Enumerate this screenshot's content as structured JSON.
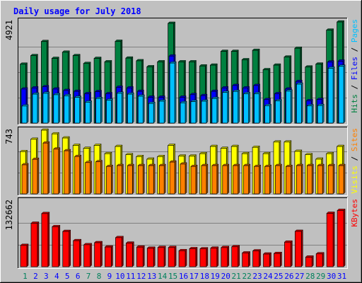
{
  "title": "Daily usage for July 2018",
  "colors": {
    "background": "#c0c0c0",
    "plot_background": "#c0c0c0",
    "title": "#0000ff",
    "hits": "#008040",
    "files": "#0000ff",
    "pages": "#00c0ff",
    "visits": "#ffff00",
    "sites": "#ff8000",
    "kbytes": "#ff0000",
    "weekend_day_label": "#00805c",
    "weekday_day_label": "#0000ff"
  },
  "chart_data": [
    {
      "type": "bar",
      "panel": "top",
      "y_tick_label": "4921",
      "categories": [
        "1",
        "2",
        "3",
        "4",
        "5",
        "6",
        "7",
        "8",
        "9",
        "10",
        "11",
        "12",
        "13",
        "14",
        "15",
        "16",
        "17",
        "18",
        "19",
        "20",
        "21",
        "22",
        "23",
        "24",
        "25",
        "26",
        "27",
        "28",
        "29",
        "30",
        "31"
      ],
      "weekend_days": [
        "1",
        "7",
        "8",
        "14",
        "15",
        "21",
        "22",
        "28",
        "29"
      ],
      "ylim": [
        0,
        4921
      ],
      "legend": [
        {
          "label": "Hits",
          "color_key": "hits"
        },
        {
          "label": "Files",
          "color_key": "files"
        },
        {
          "label": "Pages",
          "color_key": "pages"
        }
      ],
      "series": [
        {
          "name": "Hits",
          "color_key": "hits",
          "values": [
            2845,
            3260,
            3940,
            3125,
            3425,
            3260,
            2880,
            3125,
            2960,
            3950,
            3140,
            3010,
            2720,
            2960,
            4820,
            2960,
            2960,
            2760,
            2800,
            3465,
            3465,
            3060,
            3515,
            2580,
            2800,
            3190,
            3615,
            2710,
            2850,
            4490,
            4885
          ]
        },
        {
          "name": "Files",
          "color_key": "files",
          "values": [
            1645,
            1700,
            1755,
            1645,
            1575,
            1535,
            1420,
            1520,
            1420,
            1730,
            1700,
            1535,
            1250,
            1250,
            3240,
            1250,
            1375,
            1330,
            1535,
            1700,
            1815,
            1700,
            1815,
            1135,
            1420,
            1645,
            2010,
            1080,
            1140,
            2950,
            2995
          ]
        },
        {
          "name": "Pages",
          "color_key": "pages",
          "values": [
            825,
            1400,
            1440,
            1370,
            1320,
            1245,
            1010,
            1190,
            1110,
            1440,
            1400,
            1300,
            950,
            1060,
            2900,
            980,
            1040,
            1060,
            1190,
            1480,
            1530,
            1420,
            1420,
            840,
            1075,
            1545,
            1880,
            835,
            850,
            2650,
            2745
          ]
        }
      ]
    },
    {
      "type": "bar",
      "panel": "middle",
      "y_tick_label": "743",
      "categories": [
        "1",
        "2",
        "3",
        "4",
        "5",
        "6",
        "7",
        "8",
        "9",
        "10",
        "11",
        "12",
        "13",
        "14",
        "15",
        "16",
        "17",
        "18",
        "19",
        "20",
        "21",
        "22",
        "23",
        "24",
        "25",
        "26",
        "27",
        "28",
        "29",
        "30",
        "31"
      ],
      "ylim": [
        0,
        743
      ],
      "legend": [
        {
          "label": "Visits",
          "color_key": "visits"
        },
        {
          "label": "Sites",
          "color_key": "sites"
        }
      ],
      "series": [
        {
          "name": "Visits",
          "color_key": "visits",
          "values": [
            493,
            637,
            743,
            700,
            652,
            566,
            531,
            566,
            469,
            553,
            457,
            435,
            405,
            435,
            566,
            441,
            441,
            469,
            553,
            531,
            553,
            469,
            543,
            469,
            605,
            605,
            496,
            457,
            405,
            469,
            553
          ]
        },
        {
          "name": "Sites",
          "color_key": "sites",
          "values": [
            339,
            403,
            593,
            523,
            503,
            436,
            365,
            375,
            320,
            330,
            330,
            330,
            330,
            330,
            371,
            348,
            320,
            330,
            330,
            330,
            330,
            330,
            320,
            320,
            330,
            320,
            330,
            330,
            330,
            330,
            330
          ]
        }
      ]
    },
    {
      "type": "bar",
      "panel": "bottom",
      "y_tick_label": "132662",
      "categories": [
        "1",
        "2",
        "3",
        "4",
        "5",
        "6",
        "7",
        "8",
        "9",
        "10",
        "11",
        "12",
        "13",
        "14",
        "15",
        "16",
        "17",
        "18",
        "19",
        "20",
        "21",
        "22",
        "23",
        "24",
        "25",
        "26",
        "27",
        "28",
        "29",
        "30",
        "31"
      ],
      "ylim": [
        0,
        132662
      ],
      "legend": [
        {
          "label": "KBytes",
          "color_key": "kbytes"
        }
      ],
      "series": [
        {
          "name": "KBytes",
          "color_key": "kbytes",
          "values": [
            43000,
            87700,
            107200,
            80700,
            71200,
            52600,
            44400,
            48500,
            39800,
            58700,
            47600,
            39600,
            37300,
            38800,
            38800,
            32300,
            36400,
            36100,
            37500,
            38700,
            40300,
            27800,
            32000,
            25600,
            26700,
            49600,
            71400,
            19400,
            26000,
            107700,
            113500
          ]
        }
      ]
    }
  ]
}
